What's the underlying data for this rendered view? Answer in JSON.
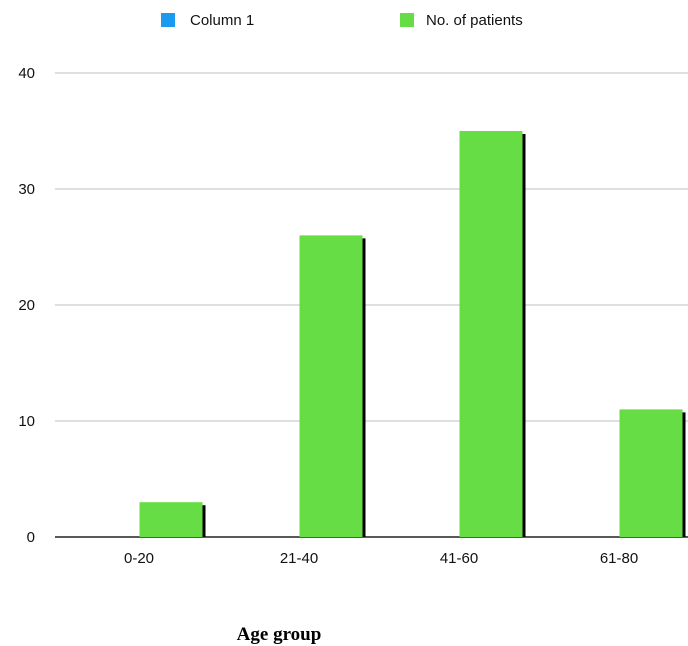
{
  "chart_data": {
    "type": "bar",
    "categories": [
      "0-20",
      "21-40",
      "41-60",
      "61-80"
    ],
    "series": [
      {
        "name": "Column 1",
        "values": [
          null,
          null,
          null,
          null
        ],
        "color": "#1a9bf0"
      },
      {
        "name": "No. of patients",
        "values": [
          3,
          26,
          35,
          11
        ],
        "color": "#66dd44"
      }
    ],
    "title": "",
    "xlabel": "Age group",
    "ylabel": "",
    "ylim": [
      0,
      40
    ],
    "yticks": [
      0,
      10,
      20,
      30,
      40
    ],
    "grid": true,
    "legend_position": "top",
    "bar_shadow_color": "#000000",
    "grid_color": "#bfbfbf"
  }
}
